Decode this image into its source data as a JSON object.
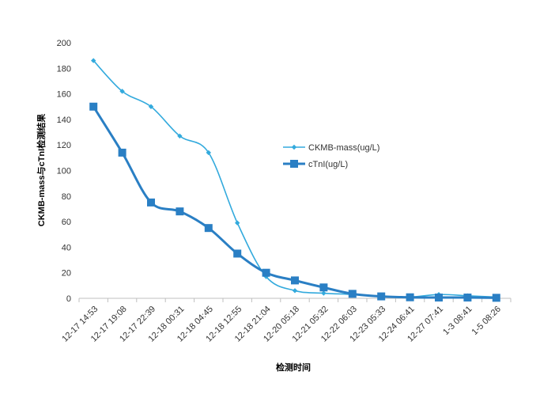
{
  "chart_data": {
    "type": "line",
    "title": "",
    "xlabel": "检测时间",
    "ylabel": "CKMB-mass与cTnI检测结果",
    "ylim": [
      0,
      200
    ],
    "yticks": [
      0,
      20,
      40,
      60,
      80,
      100,
      120,
      140,
      160,
      180,
      200
    ],
    "grid": false,
    "legend_position": "right",
    "categories": [
      "12-17 14:53",
      "12-17 19:08",
      "12-17 22:39",
      "12-18 00:31",
      "12-18 04:45",
      "12-18 12:55",
      "12-18 21:04",
      "12-20 05:18",
      "12-21 05:32",
      "12-22 06:03",
      "12-23 05:33",
      "12-24 06:41",
      "12-27 07:41",
      "1-3 08:41",
      "1-5 08:26"
    ],
    "series": [
      {
        "name": "CKMB-mass(ug/L)",
        "marker": "diamond",
        "color": "#33AADD",
        "values": [
          186,
          162,
          150,
          127,
          114,
          59,
          17,
          6,
          4,
          3,
          1.5,
          1,
          3,
          2,
          1
        ]
      },
      {
        "name": "cTnI(ug/L)",
        "marker": "square",
        "color": "#2A7FC4",
        "values": [
          150,
          114,
          75,
          68,
          55,
          35,
          20,
          14,
          8.5,
          3.5,
          1.5,
          0.8,
          0.6,
          0.6,
          0.4
        ]
      }
    ]
  }
}
